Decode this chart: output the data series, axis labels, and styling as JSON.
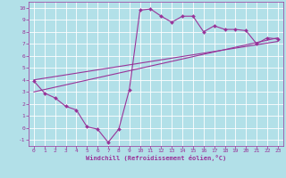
{
  "xlabel": "Windchill (Refroidissement éolien,°C)",
  "ylabel": "",
  "xlim": [
    -0.5,
    23.5
  ],
  "ylim": [
    -1.5,
    10.5
  ],
  "xticks": [
    0,
    1,
    2,
    3,
    4,
    5,
    6,
    7,
    8,
    9,
    10,
    11,
    12,
    13,
    14,
    15,
    16,
    17,
    18,
    19,
    20,
    21,
    22,
    23
  ],
  "yticks": [
    -1,
    0,
    1,
    2,
    3,
    4,
    5,
    6,
    7,
    8,
    9,
    10
  ],
  "bg_color": "#b2e0e8",
  "grid_color": "#ffffff",
  "line_color": "#993399",
  "curve1_y": [
    3.9,
    2.9,
    2.5,
    1.8,
    1.5,
    0.1,
    -0.1,
    -1.2,
    -0.1,
    3.2,
    9.8,
    9.9,
    9.3,
    8.8,
    9.3,
    9.3,
    8.0,
    8.5,
    8.2,
    8.2,
    8.1,
    7.0,
    7.5,
    7.4
  ],
  "line2_x": [
    0,
    23
  ],
  "line2_y": [
    3.0,
    7.5
  ],
  "line3_x": [
    0,
    23
  ],
  "line3_y": [
    4.0,
    7.2
  ],
  "marker": "D",
  "markersize": 2,
  "linewidth": 0.8
}
